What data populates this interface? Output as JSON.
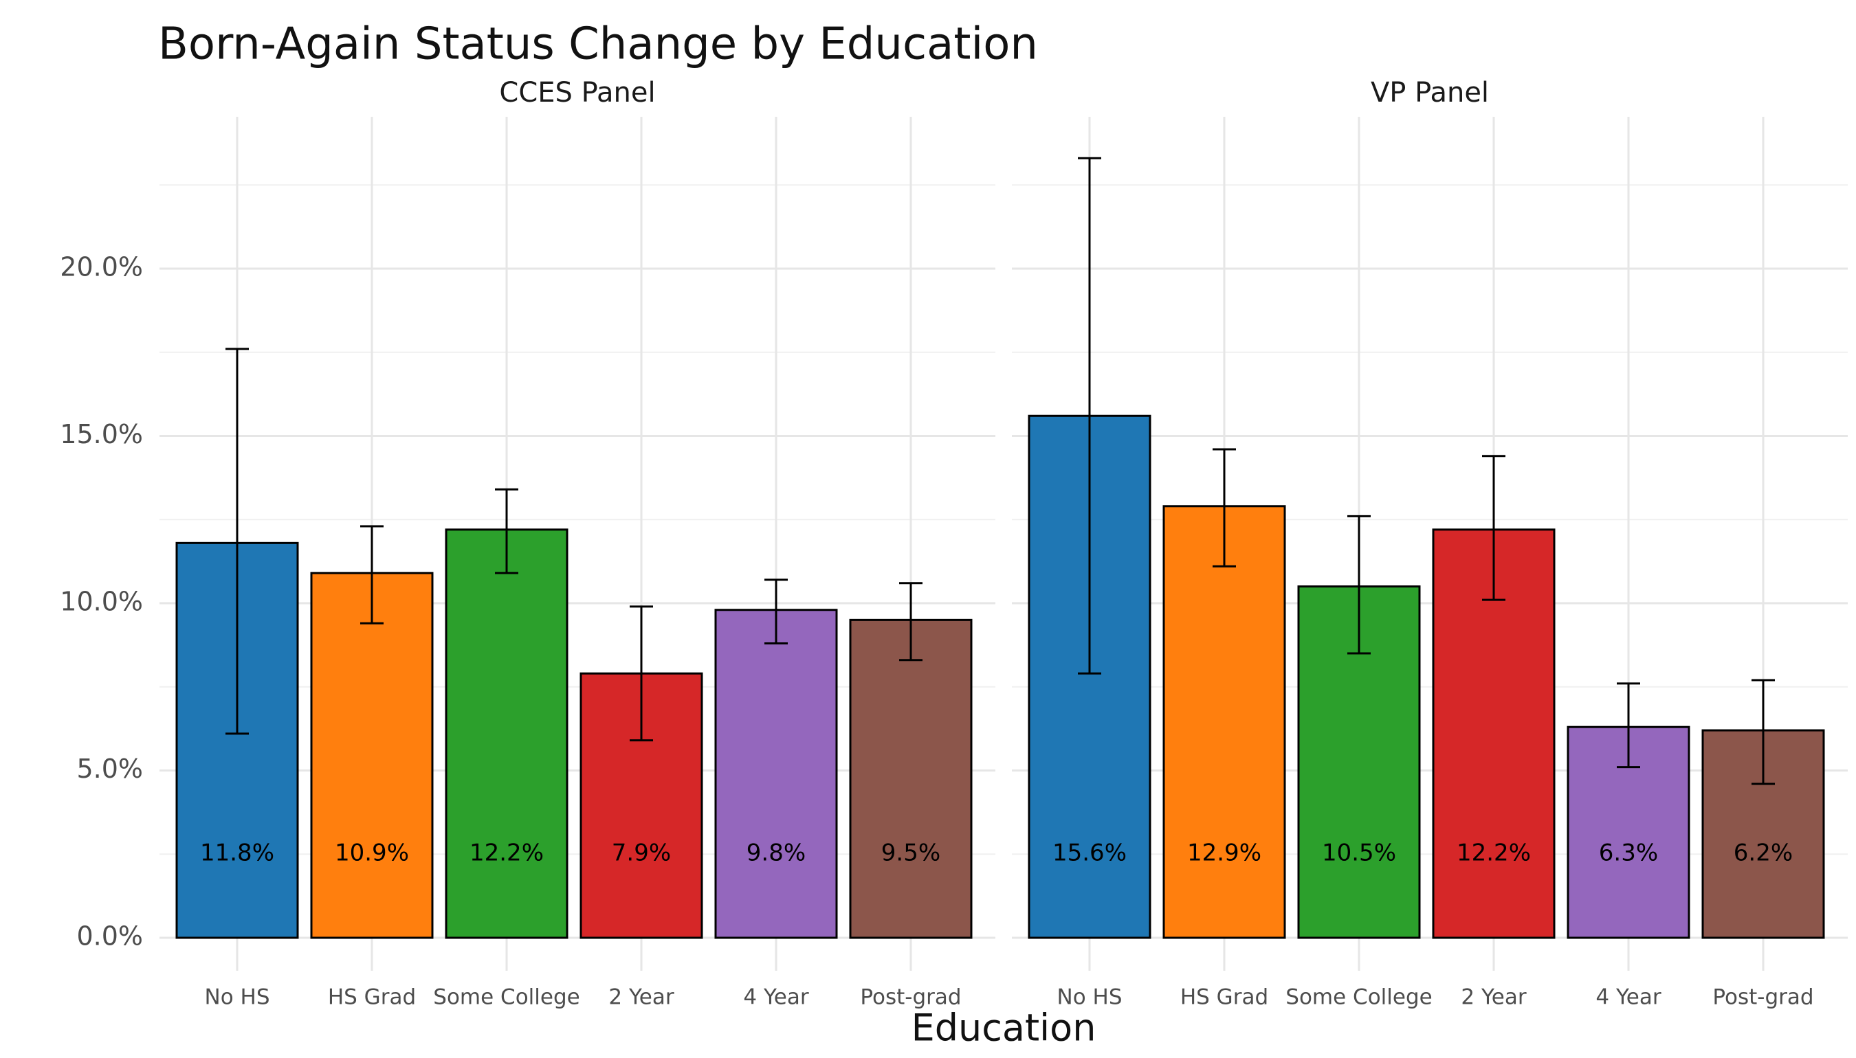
{
  "chart_data": {
    "type": "bar",
    "title": "Born-Again Status Change by Education",
    "xlabel": "Education",
    "ylabel": "",
    "ylim": [
      -0.01,
      0.235
    ],
    "y_ticks": [
      0.0,
      0.05,
      0.1,
      0.15,
      0.2
    ],
    "y_tick_labels": [
      "0.0%",
      "5.0%",
      "10.0%",
      "15.0%",
      "20.0%"
    ],
    "grid": true,
    "legend": "none",
    "categories": [
      "No HS",
      "HS Grad",
      "Some College",
      "2 Year",
      "4 Year",
      "Post-grad"
    ],
    "colors": [
      "#1f77b4",
      "#ff7f0e",
      "#2ca02c",
      "#d62728",
      "#9467bd",
      "#8c564b"
    ],
    "panels": [
      {
        "name": "CCES Panel",
        "values": [
          0.118,
          0.109,
          0.122,
          0.079,
          0.098,
          0.095
        ],
        "labels": [
          "11.8%",
          "10.9%",
          "12.2%",
          "7.9%",
          "9.8%",
          "9.5%"
        ],
        "err_low": [
          0.061,
          0.094,
          0.109,
          0.059,
          0.088,
          0.083
        ],
        "err_high": [
          0.176,
          0.123,
          0.134,
          0.099,
          0.107,
          0.106
        ]
      },
      {
        "name": "VP Panel",
        "values": [
          0.156,
          0.129,
          0.105,
          0.122,
          0.063,
          0.062
        ],
        "labels": [
          "15.6%",
          "12.9%",
          "10.5%",
          "12.2%",
          "6.3%",
          "6.2%"
        ],
        "err_low": [
          0.079,
          0.111,
          0.085,
          0.101,
          0.051,
          0.046
        ],
        "err_high": [
          0.233,
          0.146,
          0.126,
          0.144,
          0.076,
          0.077
        ]
      }
    ]
  }
}
